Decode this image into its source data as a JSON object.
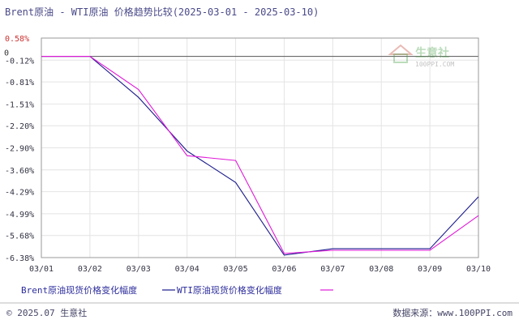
{
  "colors": {
    "background": "#ffffff",
    "title": "#4a4a8a",
    "plot_border": "#999999",
    "grid": "#e4e4e4",
    "tick_text": "#333344",
    "tick_text_positive": "#cc3333",
    "zero_marker": "#333333",
    "legend_text": "#2c2c9c",
    "footer_rule": "#bbbbbb",
    "footer_text": "#444466",
    "watermark_green": "#3c9a3c",
    "watermark_red": "#c0392b",
    "watermark_text": "#9a9a9a"
  },
  "watermark": {
    "name": "生意社",
    "url": "100PPI.COM"
  },
  "footer": {
    "left": "© 2025.07 生意社",
    "right": "数据来源：www.100PPI.com"
  },
  "zero_marker_label": "0",
  "chart_data": {
    "type": "line",
    "title": "Brent原油 - WTI原油 价格趋势比较(2025-03-01 - 2025-03-10)",
    "xlabel": "",
    "ylabel": "",
    "categories": [
      "03/01",
      "03/02",
      "03/03",
      "03/04",
      "03/05",
      "03/06",
      "03/07",
      "03/08",
      "03/09",
      "03/10"
    ],
    "yticks": [
      "0.58%",
      "-0.12%",
      "-0.81%",
      "-1.51%",
      "-2.20%",
      "-2.90%",
      "-3.60%",
      "-4.29%",
      "-4.99%",
      "-5.68%",
      "-6.38%"
    ],
    "ylim": [
      -6.38,
      0.58
    ],
    "zero_line": 0,
    "grid": true,
    "legend_position": "bottom-left",
    "series": [
      {
        "name": "Brent原油现货价格变化幅度",
        "color": "#1a1a8c",
        "values": [
          0,
          0,
          -1.3,
          -3.0,
          -4.0,
          -6.3,
          -6.1,
          -6.1,
          -6.1,
          -4.45
        ]
      },
      {
        "name": "WTI原油现货价格变化幅度",
        "color": "#e01ad8",
        "values": [
          0,
          0,
          -1.05,
          -3.15,
          -3.3,
          -6.25,
          -6.15,
          -6.15,
          -6.15,
          -5.05
        ]
      }
    ]
  }
}
